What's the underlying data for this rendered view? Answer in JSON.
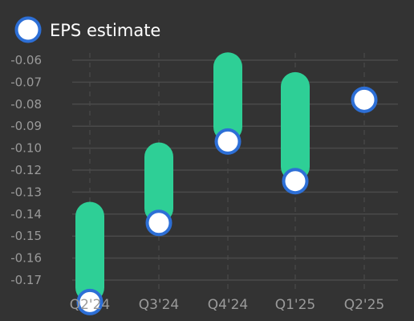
{
  "chart_data": {
    "type": "range-bar",
    "legend": [
      {
        "label": "EPS estimate",
        "marker": "hollow-circle",
        "color": "#2d6fd6"
      }
    ],
    "legend_position": "top-left",
    "categories": [
      "Q2'24",
      "Q3'24",
      "Q4'24",
      "Q1'25",
      "Q2'25"
    ],
    "y_tick_labels": [
      "-0.06",
      "-0.07",
      "-0.08",
      "-0.09",
      "-0.10",
      "-0.12",
      "-0.13",
      "-0.14",
      "-0.15",
      "-0.16",
      "-0.17"
    ],
    "ylim": [
      -0.175,
      -0.055
    ],
    "series": [
      {
        "name": "EPS estimate",
        "values": [
          -0.17,
          -0.134,
          -0.097,
          -0.115,
          -0.078
        ]
      }
    ],
    "ranges": [
      {
        "category": "Q2'24",
        "low": -0.17,
        "high": -0.131
      },
      {
        "category": "Q3'24",
        "low": -0.134,
        "high": -0.104
      },
      {
        "category": "Q4'24",
        "low": -0.097,
        "high": -0.063
      },
      {
        "category": "Q1'25",
        "low": -0.115,
        "high": -0.072
      },
      {
        "category": "Q2'25",
        "low": null,
        "high": null
      }
    ],
    "grid": {
      "horizontal": true,
      "vertical": "dashed"
    },
    "colors": {
      "background": "#333333",
      "grid": "#4a4a4a",
      "range_bar": "#2ecf96",
      "marker_stroke": "#2d6fd6",
      "marker_fill": "#ffffff",
      "tick_text": "#9a9a9a",
      "legend_text": "#ffffff"
    }
  }
}
